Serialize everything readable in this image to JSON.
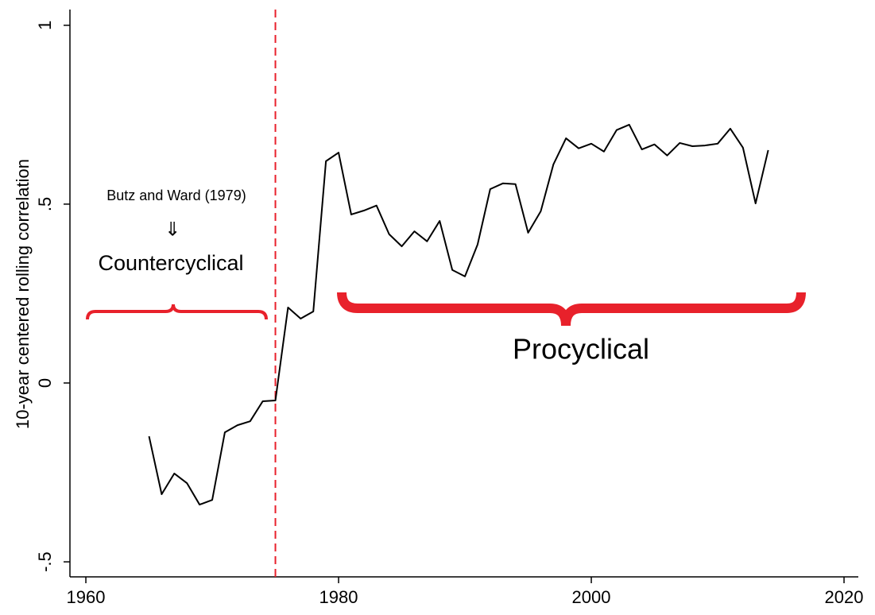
{
  "chart_data": {
    "type": "line",
    "y_label": "10-year centered rolling correlation",
    "x": [
      1965,
      1966,
      1967,
      1968,
      1969,
      1970,
      1971,
      1972,
      1973,
      1974,
      1975,
      1976,
      1977,
      1978,
      1979,
      1980,
      1981,
      1982,
      1983,
      1984,
      1985,
      1986,
      1987,
      1988,
      1989,
      1990,
      1991,
      1992,
      1993,
      1994,
      1995,
      1996,
      1997,
      1998,
      1999,
      2000,
      2001,
      2002,
      2003,
      2004,
      2005,
      2006,
      2007,
      2008,
      2009,
      2010,
      2011,
      2012,
      2013,
      2014
    ],
    "series": [
      {
        "color": "#000000",
        "values": [
          -0.149,
          -0.311,
          -0.253,
          -0.28,
          -0.34,
          -0.327,
          -0.138,
          -0.118,
          -0.107,
          -0.051,
          -0.049,
          0.211,
          0.18,
          0.2,
          0.62,
          0.644,
          0.471,
          0.482,
          0.496,
          0.416,
          0.382,
          0.424,
          0.396,
          0.453,
          0.316,
          0.298,
          0.387,
          0.542,
          0.558,
          0.556,
          0.42,
          0.48,
          0.611,
          0.684,
          0.656,
          0.669,
          0.647,
          0.707,
          0.722,
          0.653,
          0.667,
          0.636,
          0.671,
          0.662,
          0.664,
          0.669,
          0.711,
          0.658,
          0.502,
          0.651
        ]
      }
    ],
    "xlim": [
      1958.74,
      2021.13
    ],
    "ylim": [
      -0.542,
      1.044
    ],
    "xticks": [
      1960,
      1980,
      2000,
      2020
    ],
    "yticks": [
      {
        "value": -0.5,
        "label": "-.5"
      },
      0,
      {
        "value": 0.5,
        "label": ".5"
      },
      1
    ],
    "vline": {
      "x": 1975,
      "color": "#e8212b"
    },
    "annotations": {
      "source": "Butz and Ward (1979)",
      "arrow": "⇓",
      "left": "Countercyclical",
      "right": "Procyclical"
    }
  }
}
